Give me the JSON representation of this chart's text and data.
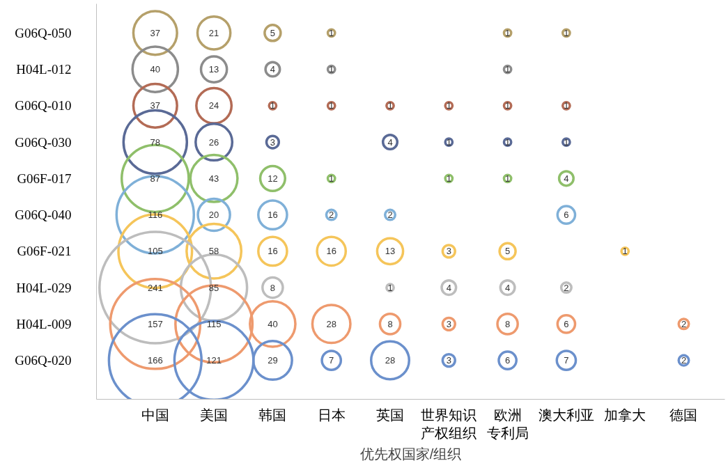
{
  "chart_data": {
    "type": "heatmap",
    "xlabel": "优先权国家/组织",
    "categories": [
      "中国",
      "美国",
      "韩国",
      "日本",
      "英国",
      "世界知识产权组织",
      "欧洲专利局",
      "澳大利亚",
      "加拿大",
      "德国"
    ],
    "y_categories": [
      "G06Q-050",
      "H04L-012",
      "G06Q-010",
      "G06Q-030",
      "G06F-017",
      "G06Q-040",
      "G06F-021",
      "H04L-029",
      "H04L-009",
      "G06Q-020"
    ],
    "colors": [
      "#b5a06a",
      "#8c8c8c",
      "#b36b55",
      "#5a6a96",
      "#8fbf6a",
      "#7fb0d8",
      "#f5c55a",
      "#bdbdbd",
      "#ee9a6e",
      "#6b90cc"
    ],
    "data_labels": true,
    "cells": [
      [
        37,
        21,
        5,
        1,
        null,
        null,
        1,
        1,
        null,
        null
      ],
      [
        40,
        13,
        4,
        1,
        null,
        null,
        1,
        null,
        null,
        null
      ],
      [
        37,
        24,
        1,
        1,
        1,
        1,
        1,
        1,
        null,
        null
      ],
      [
        78,
        26,
        3,
        null,
        4,
        1,
        1,
        1,
        null,
        null
      ],
      [
        87,
        43,
        12,
        1,
        null,
        1,
        1,
        4,
        null,
        null
      ],
      [
        116,
        20,
        16,
        2,
        2,
        null,
        null,
        6,
        null,
        null
      ],
      [
        105,
        58,
        16,
        16,
        13,
        3,
        5,
        null,
        1,
        null
      ],
      [
        241,
        85,
        8,
        null,
        1,
        4,
        4,
        2,
        null,
        null
      ],
      [
        157,
        115,
        40,
        28,
        8,
        3,
        8,
        6,
        null,
        2
      ],
      [
        166,
        121,
        29,
        7,
        28,
        3,
        6,
        7,
        null,
        2
      ]
    ]
  }
}
